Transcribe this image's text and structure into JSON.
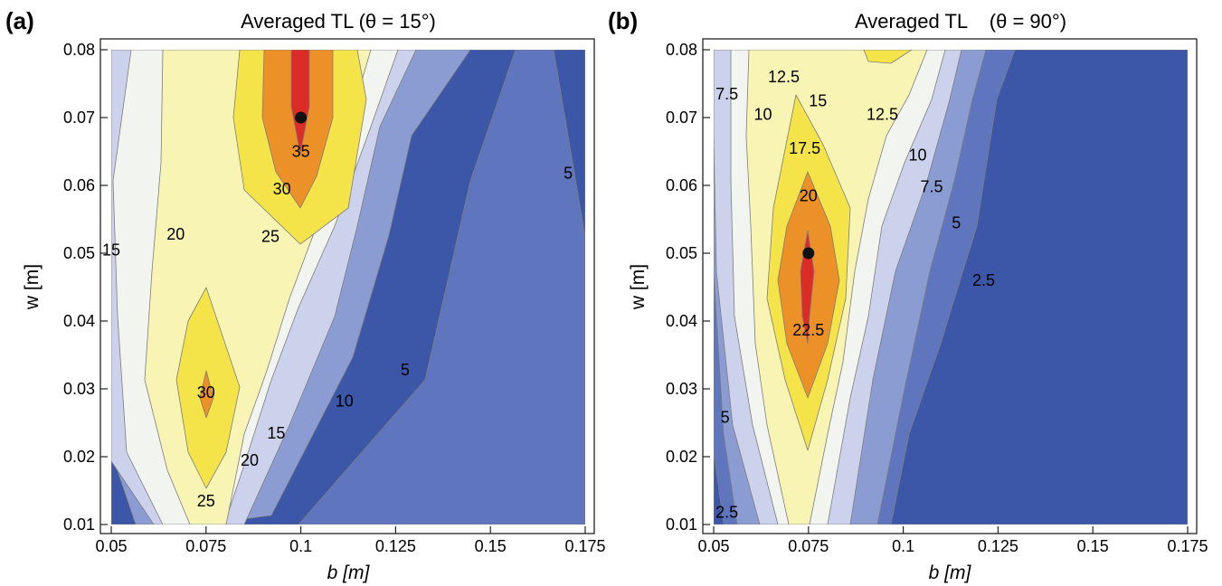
{
  "figure": {
    "panels": [
      {
        "label": "(a)",
        "title": "Averaged TL (θ = 15°)",
        "xlabel": "b [m]",
        "ylabel": "w [m]"
      },
      {
        "label": "(b)",
        "title": "Averaged TL    (θ = 90°)",
        "xlabel": "b [m]",
        "ylabel": "w [m]"
      }
    ]
  },
  "colors": {
    "band_0": "#3c56a8",
    "band_1": "#5f75bd",
    "band_2": "#8b9cd2",
    "band_3": "#ccd2ec",
    "band_4": "#f2f4f0",
    "band_5": "#f8f4b4",
    "band_6": "#f4e44a",
    "band_7": "#ec9128",
    "band_8": "#dd2c28",
    "marker": "#111111"
  },
  "chart_data": [
    {
      "type": "contour",
      "panel": "(a)",
      "title": "Averaged TL (θ = 15°)",
      "xlabel": "b [m]",
      "ylabel": "w [m]",
      "xlim": [
        0.05,
        0.175
      ],
      "ylim": [
        0.01,
        0.08
      ],
      "xticks": [
        "0.05",
        "0.075",
        "0.1",
        "0.125",
        "0.15",
        "0.175"
      ],
      "yticks": [
        "0.01",
        "0.02",
        "0.03",
        "0.04",
        "0.05",
        "0.06",
        "0.07",
        "0.08"
      ],
      "contour_levels": [
        5,
        10,
        15,
        20,
        25,
        30,
        35
      ],
      "contour_labels": [
        {
          "text": "35",
          "x": 0.1,
          "y": 0.065
        },
        {
          "text": "30",
          "x": 0.095,
          "y": 0.0595
        },
        {
          "text": "25",
          "x": 0.092,
          "y": 0.0525
        },
        {
          "text": "20",
          "x": 0.067,
          "y": 0.0528
        },
        {
          "text": "15",
          "x": 0.05,
          "y": 0.0505
        },
        {
          "text": "30",
          "x": 0.075,
          "y": 0.0295
        },
        {
          "text": "25",
          "x": 0.075,
          "y": 0.0135
        },
        {
          "text": "20",
          "x": 0.0865,
          "y": 0.0195
        },
        {
          "text": "15",
          "x": 0.0935,
          "y": 0.0235
        },
        {
          "text": "10",
          "x": 0.1115,
          "y": 0.0282
        },
        {
          "text": "5",
          "x": 0.1275,
          "y": 0.0328
        },
        {
          "text": "5",
          "x": 0.1705,
          "y": 0.0618
        }
      ],
      "maximum_marker": {
        "x": 0.1,
        "y": 0.07
      },
      "grid": false
    },
    {
      "type": "contour",
      "panel": "(b)",
      "title": "Averaged TL    (θ = 90°)",
      "xlabel": "b [m]",
      "ylabel": "w [m]",
      "xlim": [
        0.05,
        0.175
      ],
      "ylim": [
        0.01,
        0.08
      ],
      "xticks": [
        "0.05",
        "0.075",
        "0.1",
        "0.125",
        "0.15",
        "0.175"
      ],
      "yticks": [
        "0.01",
        "0.02",
        "0.03",
        "0.04",
        "0.05",
        "0.06",
        "0.07",
        "0.08"
      ],
      "contour_levels": [
        2.5,
        5,
        7.5,
        10,
        12.5,
        15,
        17.5,
        20,
        22.5
      ],
      "contour_labels": [
        {
          "text": "7.5",
          "x": 0.0535,
          "y": 0.0735
        },
        {
          "text": "12.5",
          "x": 0.0685,
          "y": 0.076
        },
        {
          "text": "10",
          "x": 0.063,
          "y": 0.0705
        },
        {
          "text": "15",
          "x": 0.0775,
          "y": 0.0725
        },
        {
          "text": "12.5",
          "x": 0.0945,
          "y": 0.0705
        },
        {
          "text": "17.5",
          "x": 0.074,
          "y": 0.0655
        },
        {
          "text": "10",
          "x": 0.1038,
          "y": 0.0645
        },
        {
          "text": "20",
          "x": 0.075,
          "y": 0.0585
        },
        {
          "text": "7.5",
          "x": 0.1075,
          "y": 0.0598
        },
        {
          "text": "5",
          "x": 0.114,
          "y": 0.0545
        },
        {
          "text": "2.5",
          "x": 0.1212,
          "y": 0.046
        },
        {
          "text": "22.5",
          "x": 0.075,
          "y": 0.0387
        },
        {
          "text": "5",
          "x": 0.053,
          "y": 0.0258
        },
        {
          "text": "2.5",
          "x": 0.0535,
          "y": 0.0118
        }
      ],
      "maximum_marker": {
        "x": 0.075,
        "y": 0.05
      },
      "grid": false
    }
  ]
}
